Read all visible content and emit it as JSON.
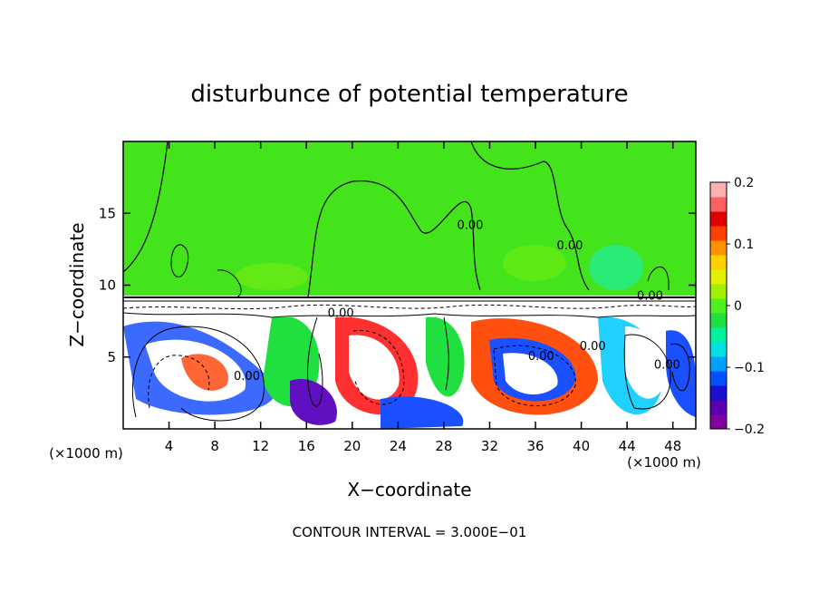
{
  "chart_data": {
    "type": "heatmap",
    "title": "disturbunce of potential temperature",
    "xlabel": "X−coordinate",
    "ylabel": "Z−coordinate",
    "x_unit_left": "(×1000 m)",
    "x_unit_right": "(×1000 m)",
    "xlim": [
      0,
      50
    ],
    "ylim": [
      0,
      20
    ],
    "x_ticks": [
      4,
      8,
      12,
      16,
      20,
      24,
      28,
      32,
      36,
      40,
      44,
      48
    ],
    "y_ticks": [
      5,
      10,
      15
    ],
    "colorbar": {
      "min": -0.2,
      "max": 0.2,
      "tick_values": [
        0.2,
        0.1,
        0,
        -0.1,
        -0.2
      ],
      "tick_labels": [
        "0.2",
        "0.1",
        "0",
        "−0.1",
        "−0.2"
      ],
      "colors": [
        "#8000a0",
        "#5a00b0",
        "#1a10d0",
        "#0050ff",
        "#00a0ff",
        "#00e0e0",
        "#00f0a0",
        "#20e040",
        "#50f020",
        "#a0f000",
        "#e0f000",
        "#ffd000",
        "#ff9000",
        "#ff4000",
        "#e00000",
        "#ff6060",
        "#ffb0b0"
      ]
    },
    "contour_labels": [
      {
        "text": "0.00",
        "x": 10.8,
        "z": 3.4
      },
      {
        "text": "0.00",
        "x": 19.0,
        "z": 7.8
      },
      {
        "text": "0.00",
        "x": 30.3,
        "z": 13.9
      },
      {
        "text": "0.00",
        "x": 39.0,
        "z": 12.5
      },
      {
        "text": "0.00",
        "x": 46.0,
        "z": 9.0
      },
      {
        "text": "0.00",
        "x": 36.5,
        "z": 4.8
      },
      {
        "text": "0.00",
        "x": 41.0,
        "z": 5.5
      },
      {
        "text": "0.00",
        "x": 47.5,
        "z": 4.2
      }
    ],
    "footer": "CONTOUR INTERVAL = 3.000E−01"
  }
}
